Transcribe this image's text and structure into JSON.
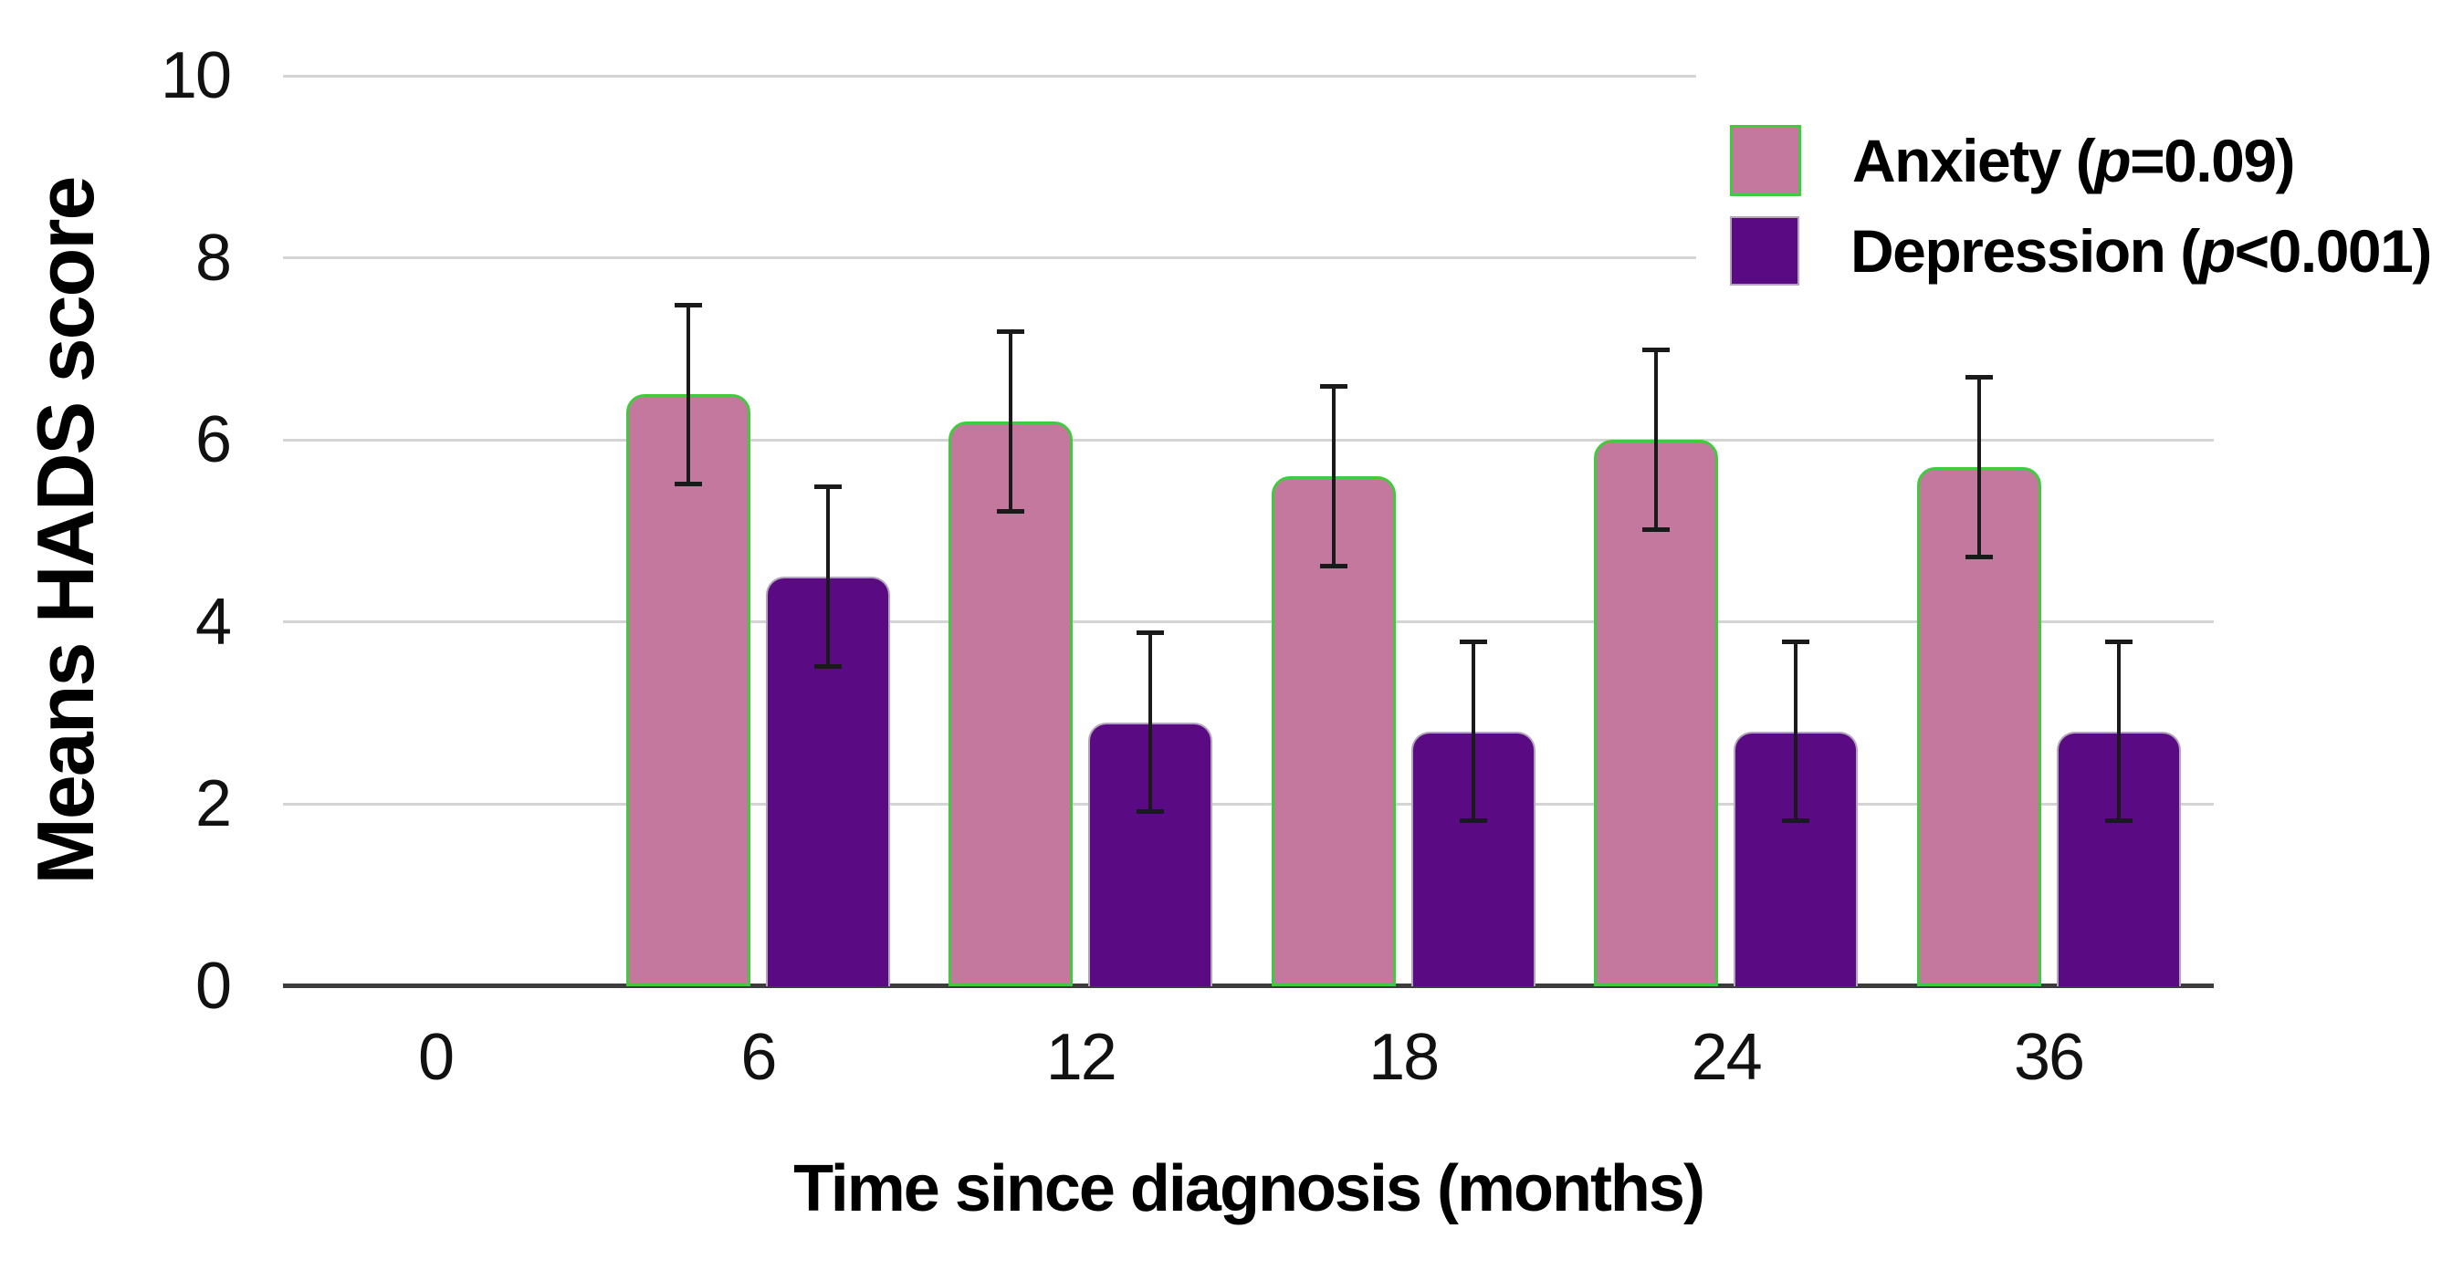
{
  "chart_data": {
    "type": "bar",
    "title": "",
    "categories": [
      "0",
      "6",
      "12",
      "18",
      "24",
      "36"
    ],
    "xlabel": "Time since diagnosis (months)",
    "ylabel": "Means HADS score",
    "ylim": [
      0,
      10
    ],
    "yticks": [
      0,
      2,
      4,
      6,
      8,
      10
    ],
    "grid": true,
    "legend_position": "top-right",
    "series": [
      {
        "name": "Anxiety (p=0.09)",
        "color": "#c4789e",
        "border_color": "#3ecc3e",
        "values": [
          null,
          6.5,
          6.2,
          5.6,
          6.0,
          5.7
        ],
        "error_bars": [
          null,
          1.0,
          1.0,
          1.0,
          1.0,
          1.0
        ]
      },
      {
        "name": "Depression (p<0.001)",
        "color": "#5a0a82",
        "border_color": "#b3a6ba",
        "values": [
          null,
          4.5,
          2.9,
          2.8,
          2.8,
          2.8
        ],
        "error_bars": [
          null,
          1.0,
          1.0,
          1.0,
          1.0,
          1.0
        ]
      }
    ]
  },
  "legend": {
    "items": [
      {
        "pre": "Anxiety (",
        "p": "p",
        "post": "=0.09)"
      },
      {
        "pre": "Depression (",
        "p": "p",
        "post": "<0.001)"
      }
    ]
  },
  "colors": {
    "gridline": "#d4d4d4",
    "baseline": "#3c3c3c",
    "error_bar": "#1a1a1a",
    "text": "#000000"
  }
}
